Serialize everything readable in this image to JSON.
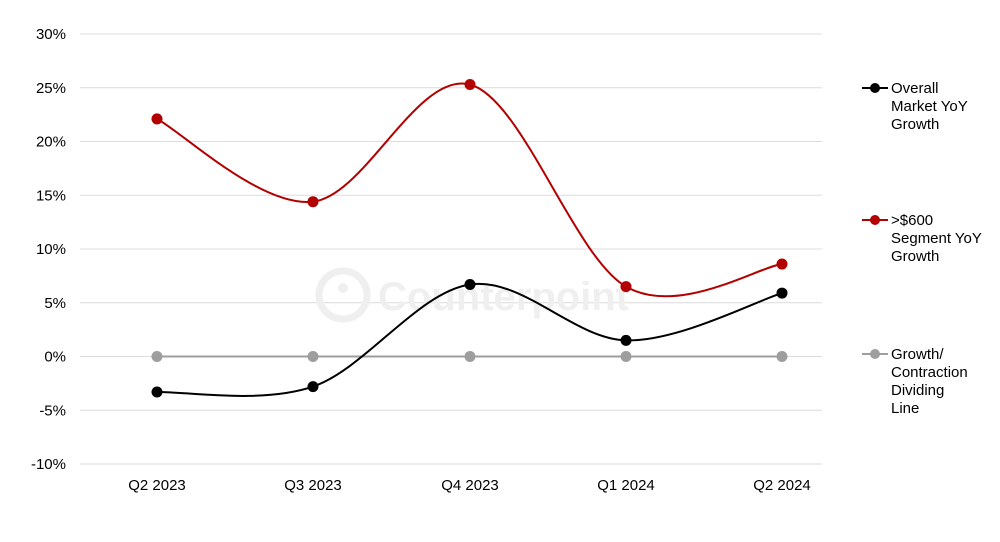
{
  "chart_data": {
    "type": "line",
    "categories": [
      "Q2 2023",
      "Q3 2023",
      "Q4 2023",
      "Q1 2024",
      "Q2 2024"
    ],
    "series": [
      {
        "name": "Overall Market YoY Growth",
        "values": [
          -3.3,
          -2.8,
          6.7,
          1.5,
          5.9
        ],
        "color": "#000000"
      },
      {
        "name": ">$600 Segment YoY Growth",
        "values": [
          22.1,
          14.4,
          25.3,
          6.5,
          8.6
        ],
        "color": "#b30000"
      },
      {
        "name": "Growth/ Contraction Dividing Line",
        "values": [
          0,
          0,
          0,
          0,
          0
        ],
        "color": "#9e9e9e"
      }
    ],
    "y_ticks": [
      "30%",
      "25%",
      "20%",
      "15%",
      "10%",
      "5%",
      "0%",
      "-5%",
      "-10%"
    ],
    "ylim": [
      -10,
      30
    ],
    "grid": true,
    "legend": "right",
    "watermark": "Counterpoint"
  }
}
